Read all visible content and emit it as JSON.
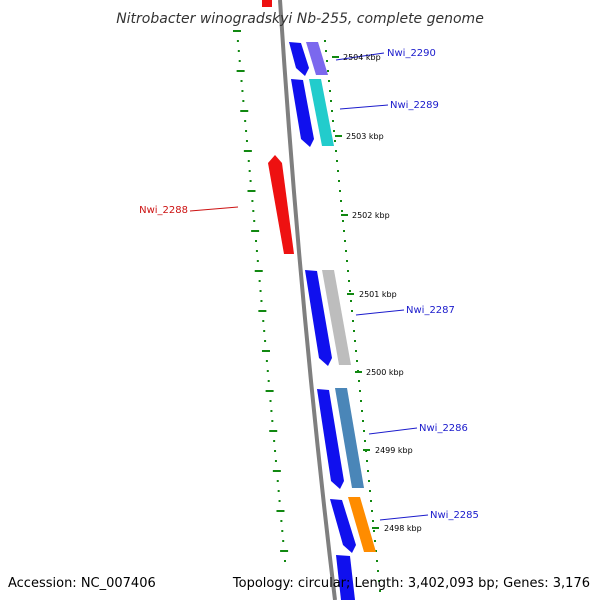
{
  "title": "Nitrobacter winogradskyi Nb-255, complete genome",
  "footer": {
    "accession": "Accession: NC_007406",
    "summary": "Topology: circular; Length: 3,402,093 bp; Genes: 3,176"
  },
  "colors": {
    "forward_gene": "#1010ee",
    "reverse_gene": "#ee1111",
    "forward_label": "#1b1bcc",
    "reverse_label": "#cc1111",
    "backbone": "#7f7f7f",
    "ticks": "#118811"
  },
  "tick_labels": [
    "2504 kbp",
    "2503 kbp",
    "2502 kbp",
    "2501 kbp",
    "2500 kbp",
    "2499 kbp",
    "2498 kbp"
  ],
  "genes": [
    {
      "label": "Nwi_2290",
      "strand": "+",
      "cog_color": "#7b68ee"
    },
    {
      "label": "Nwi_2289",
      "strand": "+",
      "cog_color": "#22cccc"
    },
    {
      "label": "Nwi_2288",
      "strand": "-",
      "cog_color": ""
    },
    {
      "label": "Nwi_2287",
      "strand": "+",
      "cog_color": "#bdbdbd"
    },
    {
      "label": "Nwi_2286",
      "strand": "+",
      "cog_color": "#4a86b8"
    },
    {
      "label": "Nwi_2285",
      "strand": "+",
      "cog_color": "#ff8c00"
    }
  ]
}
